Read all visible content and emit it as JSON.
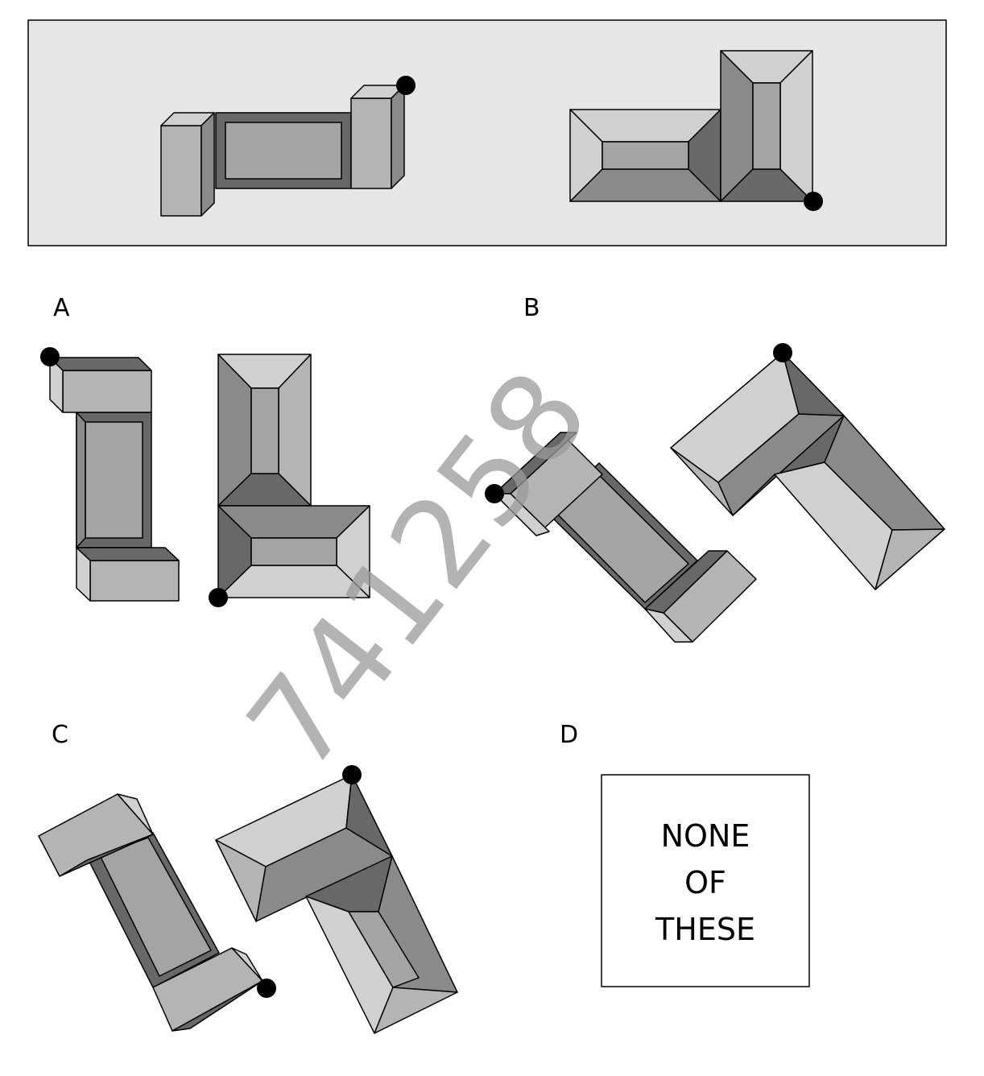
{
  "options": [
    {
      "key": "a",
      "label": "A"
    },
    {
      "key": "b",
      "label": "B"
    },
    {
      "key": "c",
      "label": "C"
    },
    {
      "key": "d",
      "label": "D"
    }
  ],
  "none_of_these": [
    "NONE",
    "OF",
    "THESE"
  ],
  "watermark": "741258",
  "colors": {
    "panel_background": "#e6e6e6",
    "face_light": "#d0d0d0",
    "face_mid": "#b4b4b4",
    "face_top": "#a4a4a4",
    "face_dark": "#8a8a8a",
    "face_darkest": "#686868",
    "marker": "#000000"
  }
}
